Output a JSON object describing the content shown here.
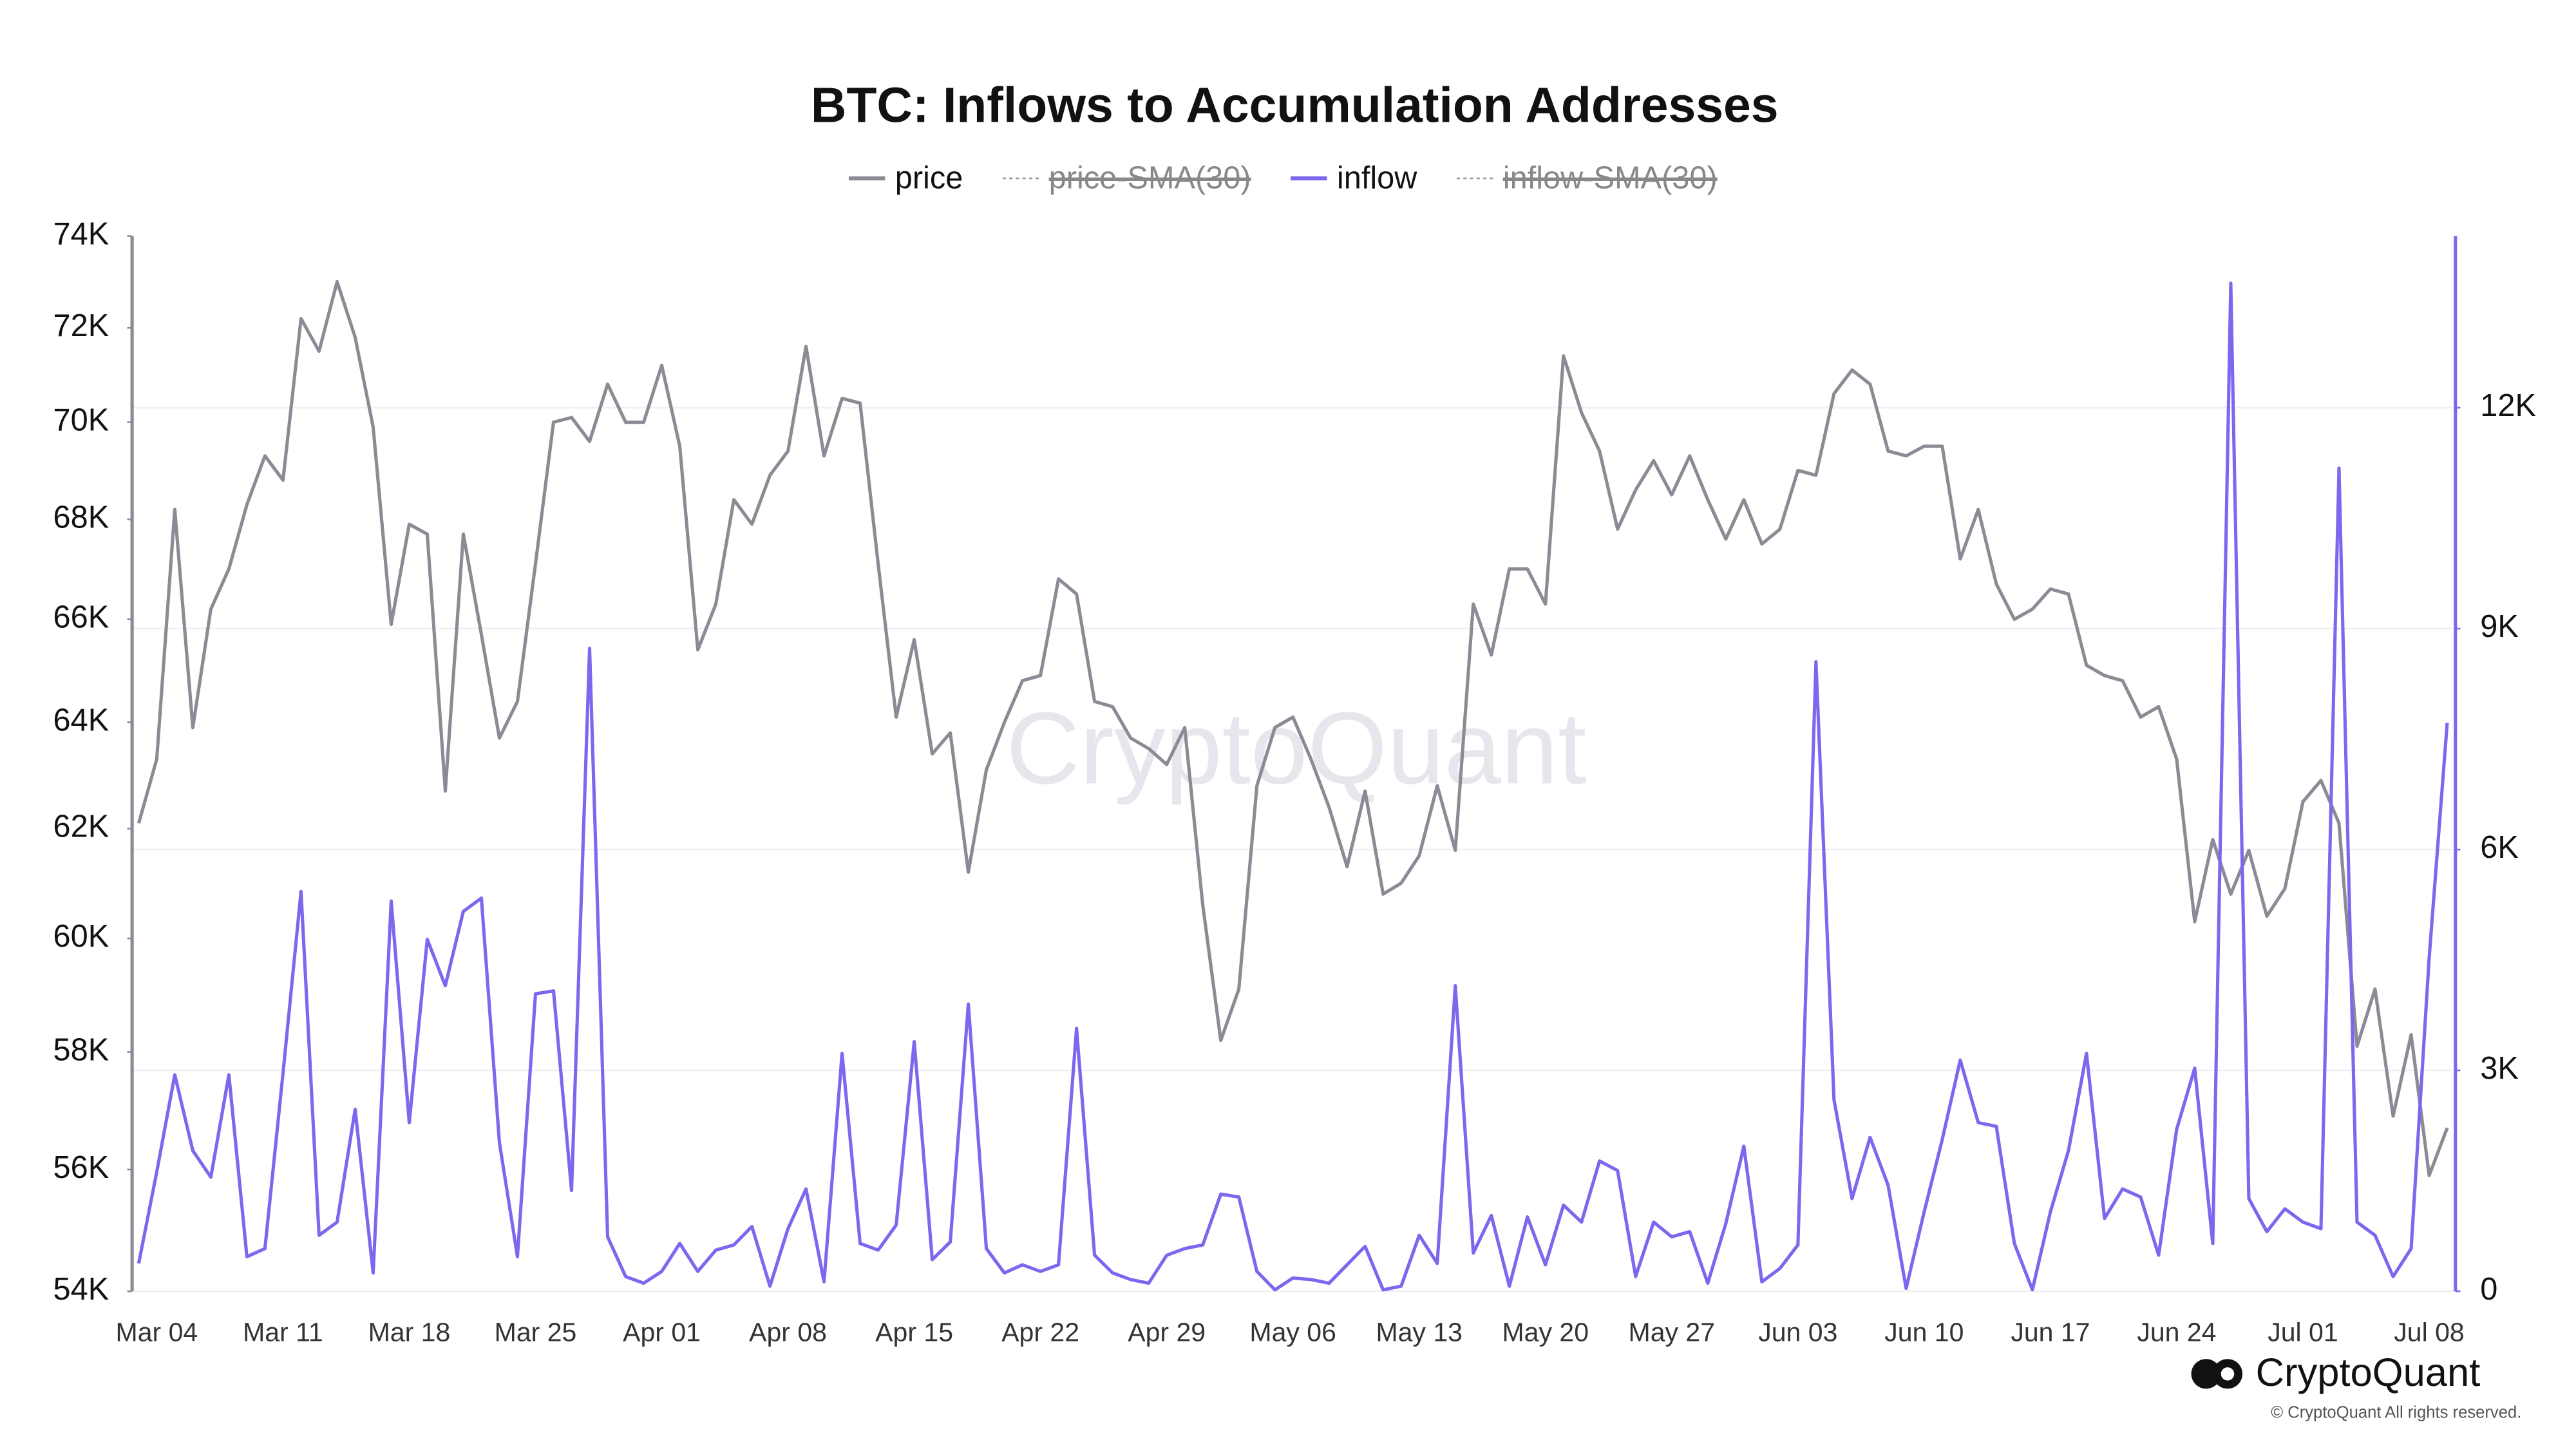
{
  "chart_data": {
    "type": "line",
    "title": "BTC: Inflows to Accumulation Addresses",
    "watermark": "CryptoQuant",
    "brand": "CryptoQuant",
    "copyright": "© CryptoQuant All rights reserved.",
    "categories": [
      null,
      "Mar 04",
      null,
      null,
      null,
      null,
      null,
      null,
      "Mar 11",
      null,
      null,
      null,
      null,
      null,
      null,
      "Mar 18",
      null,
      null,
      null,
      null,
      null,
      null,
      "Mar 25",
      null,
      null,
      null,
      null,
      null,
      null,
      "Apr 01",
      null,
      null,
      null,
      null,
      null,
      null,
      "Apr 08",
      null,
      null,
      null,
      null,
      null,
      null,
      "Apr 15",
      null,
      null,
      null,
      null,
      null,
      null,
      "Apr 22",
      null,
      null,
      null,
      null,
      null,
      null,
      "Apr 29",
      null,
      null,
      null,
      null,
      null,
      null,
      "May 06",
      null,
      null,
      null,
      null,
      null,
      null,
      "May 13",
      null,
      null,
      null,
      null,
      null,
      null,
      "May 20",
      null,
      null,
      null,
      null,
      null,
      null,
      "May 27",
      null,
      null,
      null,
      null,
      null,
      null,
      "Jun 03",
      null,
      null,
      null,
      null,
      null,
      null,
      "Jun 10",
      null,
      null,
      null,
      null,
      null,
      null,
      "Jun 17",
      null,
      null,
      null,
      null,
      null,
      null,
      "Jun 24",
      null,
      null,
      null,
      null,
      null,
      null,
      "Jul 01",
      null,
      null,
      null,
      null,
      null,
      null,
      "Jul 08",
      null
    ],
    "series": [
      {
        "name": "price",
        "color": "#8b8b95",
        "axis": "y",
        "values": [
          62100,
          63300,
          68200,
          63900,
          66200,
          67000,
          68300,
          69300,
          68800,
          72200,
          71500,
          73000,
          71800,
          69900,
          65900,
          67900,
          67700,
          62700,
          67700,
          65700,
          63700,
          64400,
          67100,
          70000,
          70100,
          69600,
          70800,
          70000,
          70000,
          71200,
          69500,
          65400,
          66300,
          68400,
          67900,
          68900,
          69400,
          71600,
          69300,
          70500,
          70400,
          67100,
          64100,
          65600,
          63400,
          63800,
          61200,
          63100,
          64000,
          64800,
          64900,
          66800,
          66500,
          64400,
          64300,
          63700,
          63500,
          63200,
          63900,
          60600,
          58200,
          59100,
          62800,
          63900,
          64100,
          63300,
          62400,
          61300,
          62700,
          60800,
          61000,
          61500,
          62800,
          61600,
          66300,
          65300,
          67000,
          67000,
          66300,
          71400,
          70200,
          69400,
          67800,
          68600,
          69200,
          68500,
          69300,
          68400,
          67600,
          68400,
          67500,
          67800,
          69000,
          68900,
          70600,
          71100,
          70800,
          69400,
          69300,
          69500,
          69500,
          67200,
          68200,
          66700,
          66000,
          66200,
          66600,
          66500,
          65100,
          64900,
          64800,
          64100,
          64300,
          63300,
          60300,
          61800,
          60800,
          61600,
          60400,
          60900,
          62500,
          62900,
          62100,
          58100,
          59100,
          56900,
          58300,
          55900,
          56700
        ]
      },
      {
        "name": "inflow",
        "color": "#7b68ee",
        "axis": "y2",
        "values": [
          380,
          1620,
          2940,
          1910,
          1550,
          2940,
          470,
          580,
          2960,
          5430,
          760,
          940,
          2470,
          250,
          5300,
          2290,
          4780,
          4150,
          5160,
          5340,
          2020,
          470,
          4040,
          4080,
          1370,
          8730,
          740,
          200,
          110,
          270,
          650,
          270,
          560,
          630,
          880,
          70,
          850,
          1390,
          130,
          3230,
          650,
          560,
          900,
          3390,
          430,
          670,
          3900,
          580,
          250,
          360,
          270,
          360,
          3570,
          490,
          250,
          160,
          110,
          490,
          580,
          630,
          1320,
          1280,
          270,
          20,
          180,
          160,
          110,
          360,
          610,
          20,
          70,
          760,
          380,
          4150,
          520,
          1030,
          70,
          1010,
          360,
          1170,
          940,
          1770,
          1640,
          200,
          940,
          740,
          810,
          110,
          920,
          1970,
          130,
          310,
          630,
          8550,
          2600,
          1260,
          2090,
          1440,
          40,
          1080,
          2060,
          3140,
          2290,
          2240,
          650,
          20,
          1080,
          1910,
          3230,
          990,
          1390,
          1280,
          490,
          2200,
          3030,
          650,
          13690,
          1260,
          810,
          1120,
          940,
          850,
          11180,
          940,
          760,
          200,
          580,
          4530,
          7720
        ]
      }
    ],
    "hidden_series": [
      {
        "name": "price-SMA(30)",
        "color": "#9a9aa2"
      },
      {
        "name": "inflow-SMA(30)",
        "color": "#9a9aa2"
      }
    ],
    "ylim": [
      54000,
      74000
    ],
    "log_y": true,
    "yticks": [
      {
        "value": 54000,
        "label": "54K"
      },
      {
        "value": 56000,
        "label": "56K"
      },
      {
        "value": 58000,
        "label": "58K"
      },
      {
        "value": 60000,
        "label": "60K"
      },
      {
        "value": 62000,
        "label": "62K"
      },
      {
        "value": 64000,
        "label": "64K"
      },
      {
        "value": 66000,
        "label": "66K"
      },
      {
        "value": 68000,
        "label": "68K"
      },
      {
        "value": 70000,
        "label": "70K"
      },
      {
        "value": 72000,
        "label": "72K"
      },
      {
        "value": 74000,
        "label": "74K"
      }
    ],
    "y2lim": [
      0,
      14330
    ],
    "y2ticks": [
      0,
      {
        "value": 3000,
        "label": "3K"
      },
      {
        "value": 6000,
        "label": "6K"
      },
      {
        "value": 9000,
        "label": "9K"
      },
      {
        "value": 12000,
        "label": "12K"
      }
    ],
    "grid": "y2"
  }
}
